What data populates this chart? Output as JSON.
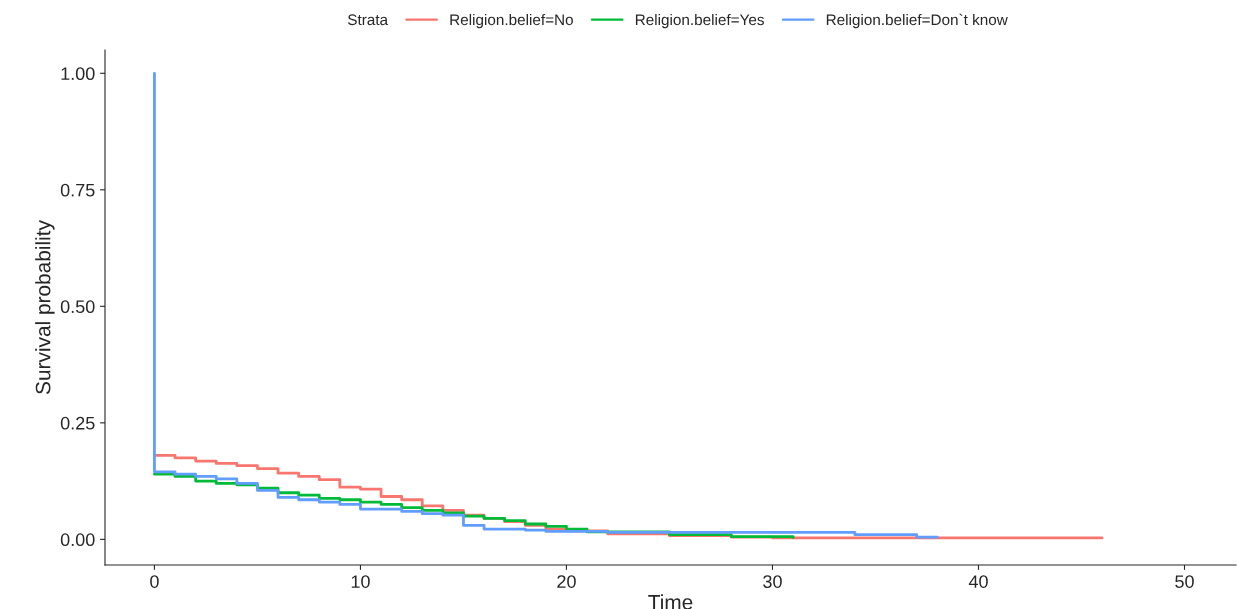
{
  "chart_data": {
    "type": "step",
    "xlabel": "Time",
    "ylabel": "Survival probability",
    "legend_title": "Strata",
    "legend": "top",
    "xlim": [
      -2.4,
      52.5
    ],
    "xticks": [
      0,
      10,
      20,
      30,
      40,
      50
    ],
    "ylim": [
      -0.055,
      1.05
    ],
    "yticks": [
      {
        "value": 0,
        "label": "0.00"
      },
      {
        "value": 0.25,
        "label": "0.25"
      },
      {
        "value": 0.5,
        "label": "0.50"
      },
      {
        "value": 0.75,
        "label": "0.75"
      },
      {
        "value": 1,
        "label": "1.00"
      }
    ],
    "grid": false,
    "series": [
      {
        "name": "Religion.belief=No",
        "color": "#f8766d",
        "x": [
          0,
          1,
          2,
          3,
          4,
          5,
          6,
          7,
          8,
          9,
          10,
          11,
          12,
          13,
          14,
          15,
          16,
          17,
          18,
          19,
          20,
          22,
          25,
          28,
          30,
          46
        ],
        "values": [
          0.18,
          0.175,
          0.168,
          0.163,
          0.158,
          0.152,
          0.142,
          0.135,
          0.128,
          0.112,
          0.108,
          0.092,
          0.085,
          0.072,
          0.062,
          0.052,
          0.045,
          0.038,
          0.03,
          0.022,
          0.018,
          0.012,
          0.008,
          0.005,
          0.003,
          0.003
        ]
      },
      {
        "name": "Religion.belief=Yes",
        "color": "#00ba38",
        "x": [
          0,
          1,
          2,
          3,
          4,
          5,
          6,
          7,
          8,
          9,
          10,
          11,
          12,
          13,
          14,
          15,
          16,
          17,
          18,
          19,
          20,
          21,
          25,
          28,
          31
        ],
        "values": [
          0.14,
          0.135,
          0.125,
          0.12,
          0.117,
          0.11,
          0.1,
          0.095,
          0.088,
          0.085,
          0.08,
          0.075,
          0.068,
          0.062,
          0.057,
          0.05,
          0.045,
          0.04,
          0.033,
          0.028,
          0.022,
          0.016,
          0.01,
          0.006,
          0.004
        ]
      },
      {
        "name": "Religion.belief=Don`t know",
        "color": "#619cff",
        "x": [
          0,
          0,
          1,
          2,
          3,
          4,
          5,
          6,
          7,
          8,
          9,
          10,
          12,
          13,
          14,
          15,
          16,
          18,
          19,
          22,
          34,
          37,
          38
        ],
        "values": [
          1.0,
          0.145,
          0.14,
          0.135,
          0.13,
          0.12,
          0.105,
          0.09,
          0.085,
          0.08,
          0.075,
          0.065,
          0.06,
          0.055,
          0.052,
          0.03,
          0.022,
          0.02,
          0.017,
          0.015,
          0.01,
          0.005,
          0.005
        ]
      }
    ]
  }
}
